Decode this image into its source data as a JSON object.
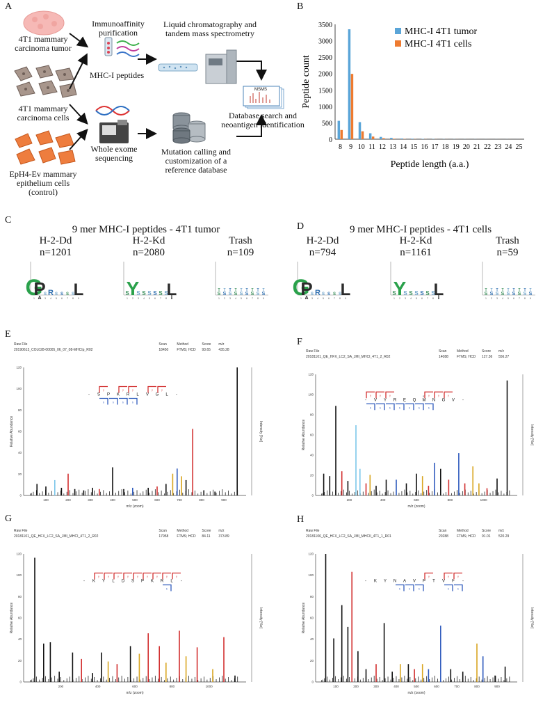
{
  "panels": {
    "A": {
      "letter": "A",
      "tumor": [
        "4T1 mammary",
        "carcinoma tumor"
      ],
      "cells": [
        "4T1 mammary",
        "carcinoma cells"
      ],
      "control": [
        "EpH4-Ev mammary",
        "epithelium cells",
        "(control)"
      ],
      "immuno": [
        "Immunoaffinity",
        "purification"
      ],
      "mhc": "MHC-I peptides",
      "lc": [
        "Liquid chromatography and",
        "tandem mass spectrometry"
      ],
      "msms": "MSMS",
      "wes": [
        "Whole exome",
        "sequencing"
      ],
      "db": [
        "Database search and",
        "neoantigen identification"
      ],
      "mutation": [
        "Mutation calling and",
        "customization of a",
        "reference database"
      ]
    },
    "B": {
      "letter": "B"
    },
    "C": {
      "letter": "C",
      "title": "9 mer MHC-I peptides - 4T1 tumor",
      "logos": [
        {
          "name": "H-2-Dd",
          "n": "n=1201"
        },
        {
          "name": "H-2-Kd",
          "n": "n=2080"
        },
        {
          "name": "Trash",
          "n": "n=109"
        }
      ]
    },
    "D": {
      "letter": "D",
      "title": "9 mer MHC-I peptides - 4T1 cells",
      "logos": [
        {
          "name": "H-2-Dd",
          "n": "n=794"
        },
        {
          "name": "H-2-Kd",
          "n": "n=1161"
        },
        {
          "name": "Trash",
          "n": "n=59"
        }
      ]
    },
    "E": {
      "letter": "E",
      "raw_label": "Raw File",
      "raw": "20190613_COL028-00005_06_07_08-MHCIp_R02",
      "scan_label": "Scan",
      "scan": "18450",
      "method_label": "Method",
      "method": "FTMS; HCD",
      "score_label": "Score",
      "score": "93.65",
      "mz_label": "m/z",
      "mz": "435.28",
      "peptide": [
        "-",
        "S",
        "P",
        "K",
        "R",
        "L",
        "V",
        "G",
        "L",
        "-"
      ],
      "xlabel": "m/z (zoom)",
      "ylabel": "Relative Abundance",
      "y2label": "Intensity [%e]",
      "xticks": [
        "100",
        "200",
        "300",
        "400",
        "500",
        "600",
        "700",
        "800",
        "900"
      ]
    },
    "F": {
      "letter": "F",
      "raw_label": "Raw File",
      "raw": "20181101_QE_HFX_LC2_SA_JMI_MHCI_4T1_2_R02",
      "scan_label": "Scan",
      "scan": "14088",
      "method_label": "Method",
      "method": "FTMS; HCD",
      "score_label": "Score",
      "score": "127.36",
      "mz_label": "m/z",
      "mz": "556.27",
      "peptide": [
        "-",
        "V",
        "Y",
        "R",
        "E",
        "Q",
        "M",
        "N",
        "G",
        "V",
        "-"
      ],
      "ox": "ox",
      "xlabel": "m/z (zoom)",
      "ylabel": "Relative Abundance",
      "y2label": "Intensity [%e]",
      "xticks": [
        "200",
        "400",
        "600",
        "800",
        "1000"
      ]
    },
    "G": {
      "letter": "G",
      "raw_label": "Raw File",
      "raw": "20181101_QE_HFX_LC2_SA_JMI_MHCI_4T1_2_R02",
      "scan_label": "Scan",
      "scan": "17958",
      "method_label": "Method",
      "method": "FTMS; HCD",
      "score_label": "Score",
      "score": "84.11",
      "mz_label": "m/z",
      "mz": "373.89",
      "peptide": [
        "-",
        "K",
        "Y",
        "L",
        "D",
        "S",
        "P",
        "K",
        "R",
        "L",
        "-"
      ],
      "xlabel": "m/z (zoom)",
      "ylabel": "Relative Abundance",
      "y2label": "Intensity [%e]",
      "xticks": [
        "200",
        "400",
        "600",
        "800",
        "1000"
      ]
    },
    "H": {
      "letter": "H",
      "raw_label": "Raw File",
      "raw": "20181106_QE_HFX_LC2_SA_JMI_MHCII_4T1_1_R01",
      "scan_label": "Scan",
      "scan": "20288",
      "method_label": "Method",
      "method": "FTMS; HCD",
      "score_label": "Score",
      "score": "91.01",
      "mz_label": "m/z",
      "mz": "520.29",
      "peptide": [
        "-",
        "K",
        "Y",
        "N",
        "A",
        "V",
        "P",
        "T",
        "V",
        "F",
        "-"
      ],
      "xlabel": "m/z (zoom)",
      "ylabel": "Relative Abundance",
      "y2label": "Intensity [%e]",
      "xticks": [
        "100",
        "200",
        "300",
        "400",
        "500",
        "600",
        "700",
        "800",
        "900"
      ]
    }
  },
  "colors": {
    "tumor": "#5aa5d8",
    "cells": "#ee7b30",
    "red": "#d22f2f",
    "blue": "#2f5bbd",
    "gold": "#d8a520",
    "lightblue": "#7cc6ea"
  },
  "chart_data": {
    "type": "bar",
    "title": "",
    "xlabel": "Peptide length (a.a.)",
    "ylabel": "Peptide count",
    "categories": [
      "8",
      "9",
      "10",
      "11",
      "12",
      "13",
      "14",
      "15",
      "16",
      "17",
      "18",
      "19",
      "20",
      "21",
      "22",
      "23",
      "24",
      "25"
    ],
    "series": [
      {
        "name": "MHC-I 4T1 tumor",
        "values": [
          560,
          3350,
          520,
          180,
          70,
          40,
          20,
          15,
          10,
          8,
          5,
          4,
          3,
          3,
          2,
          2,
          2,
          1
        ]
      },
      {
        "name": "MHC-I 4T1 cells",
        "values": [
          280,
          1990,
          240,
          80,
          30,
          15,
          8,
          6,
          4,
          3,
          2,
          2,
          1,
          1,
          1,
          1,
          1,
          1
        ]
      }
    ],
    "ylim": [
      0,
      3500
    ],
    "yticks": [
      "0",
      "500",
      "1000",
      "1500",
      "2000",
      "2500",
      "3000",
      "3500"
    ],
    "legend": "top-right"
  }
}
